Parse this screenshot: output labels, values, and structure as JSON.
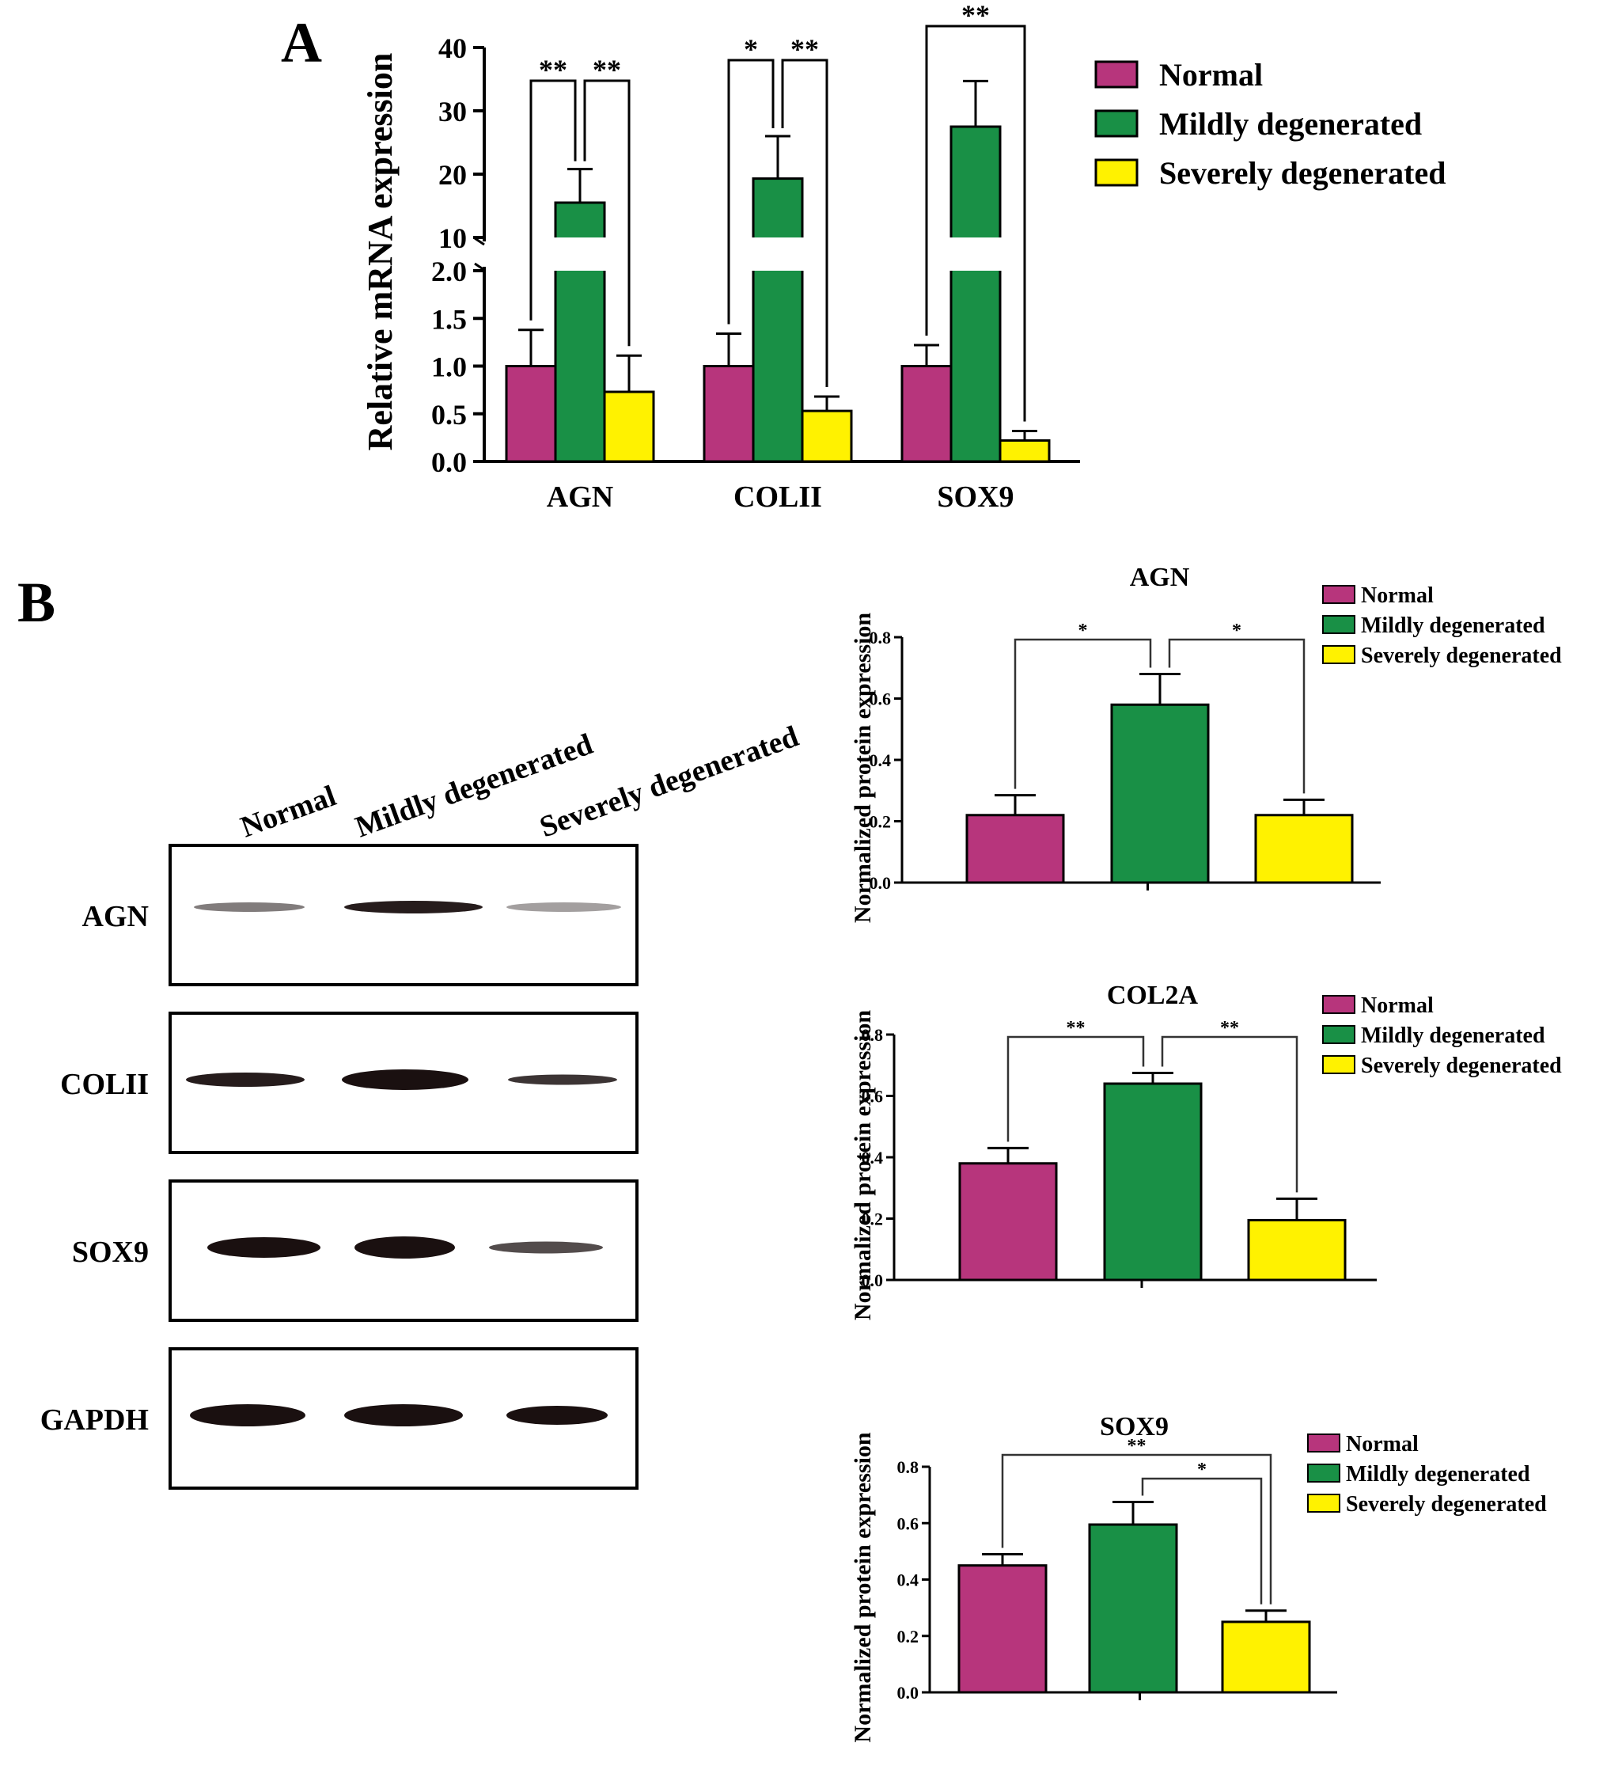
{
  "colors": {
    "normal": "#B7357C",
    "mild": "#199046",
    "severe": "#FFF200",
    "axis": "#000000"
  },
  "panels": {
    "a": "A",
    "b": "B"
  },
  "legend": [
    "Normal",
    "Mildly degenerated",
    "Severely degenerated"
  ],
  "blot": {
    "lanes": [
      "Normal",
      "Mildly degenerated",
      "Severely degenerated"
    ],
    "rows": [
      "AGN",
      "COLII",
      "SOX9",
      "GAPDH"
    ]
  },
  "chart_data": [
    {
      "type": "bar",
      "panel": "A",
      "ylabel": "Relative mRNA expression",
      "y_axis_break": {
        "lower": [
          0,
          2.0
        ],
        "upper": [
          0,
          40
        ],
        "break_between": [
          2.0,
          10
        ]
      },
      "lower_ticks": [
        "0.0",
        "0.5",
        "1.0",
        "1.5",
        "2.0"
      ],
      "upper_ticks": [
        "10",
        "20",
        "30",
        "40"
      ],
      "categories": [
        "AGN",
        "COLII",
        "SOX9"
      ],
      "series": [
        {
          "name": "Normal",
          "values": [
            1.0,
            1.0,
            1.0
          ],
          "errors": [
            0.38,
            0.34,
            0.22
          ]
        },
        {
          "name": "Mildly degenerated",
          "values": [
            15.5,
            19.3,
            27.5
          ],
          "errors": [
            5.3,
            6.7,
            7.2
          ]
        },
        {
          "name": "Severely degenerated",
          "values": [
            0.73,
            0.53,
            0.22
          ],
          "errors": [
            0.38,
            0.15,
            0.1
          ]
        }
      ],
      "significance": [
        {
          "category": "AGN",
          "from": "Normal",
          "to": "Mildly degenerated",
          "label": "**"
        },
        {
          "category": "AGN",
          "from": "Mildly degenerated",
          "to": "Severely degenerated",
          "label": "**"
        },
        {
          "category": "COLII",
          "from": "Normal",
          "to": "Mildly degenerated",
          "label": "*"
        },
        {
          "category": "COLII",
          "from": "Mildly degenerated",
          "to": "Severely degenerated",
          "label": "**"
        },
        {
          "category": "SOX9",
          "from": "Normal",
          "to": "Severely degenerated",
          "label": "**"
        }
      ]
    },
    {
      "type": "bar",
      "panel": "B",
      "title": "AGN",
      "ylabel": "Normalized protein expression",
      "ylim": [
        0,
        0.8
      ],
      "ticks": [
        "0.0",
        "0.2",
        "0.4",
        "0.6",
        "0.8"
      ],
      "categories": [
        "Normal",
        "Mildly degenerated",
        "Severely degenerated"
      ],
      "values": [
        0.22,
        0.58,
        0.22
      ],
      "errors": [
        0.065,
        0.1,
        0.05
      ],
      "significance": [
        {
          "from": "Normal",
          "to": "Mildly degenerated",
          "label": "*"
        },
        {
          "from": "Mildly degenerated",
          "to": "Severely degenerated",
          "label": "*"
        }
      ]
    },
    {
      "type": "bar",
      "panel": "B",
      "title": "COL2A",
      "ylabel": "Normalized protein expression",
      "ylim": [
        0,
        0.8
      ],
      "ticks": [
        "0.0",
        "0.2",
        "0.4",
        "0.6",
        "0.8"
      ],
      "categories": [
        "Normal",
        "Mildly degenerated",
        "Severely degenerated"
      ],
      "values": [
        0.38,
        0.64,
        0.195
      ],
      "errors": [
        0.05,
        0.035,
        0.07
      ],
      "significance": [
        {
          "from": "Normal",
          "to": "Mildly degenerated",
          "label": "**"
        },
        {
          "from": "Mildly degenerated",
          "to": "Severely degenerated",
          "label": "**"
        }
      ]
    },
    {
      "type": "bar",
      "panel": "B",
      "title": "SOX9",
      "ylabel": "Normalized protein expression",
      "ylim": [
        0,
        0.8
      ],
      "ticks": [
        "0.0",
        "0.2",
        "0.4",
        "0.6",
        "0.8"
      ],
      "categories": [
        "Normal",
        "Mildly degenerated",
        "Severely degenerated"
      ],
      "values": [
        0.45,
        0.595,
        0.25
      ],
      "errors": [
        0.04,
        0.08,
        0.04
      ],
      "significance": [
        {
          "from": "Normal",
          "to": "Severely degenerated",
          "label": "**"
        },
        {
          "from": "Mildly degenerated",
          "to": "Severely degenerated",
          "label": "*"
        }
      ]
    }
  ]
}
